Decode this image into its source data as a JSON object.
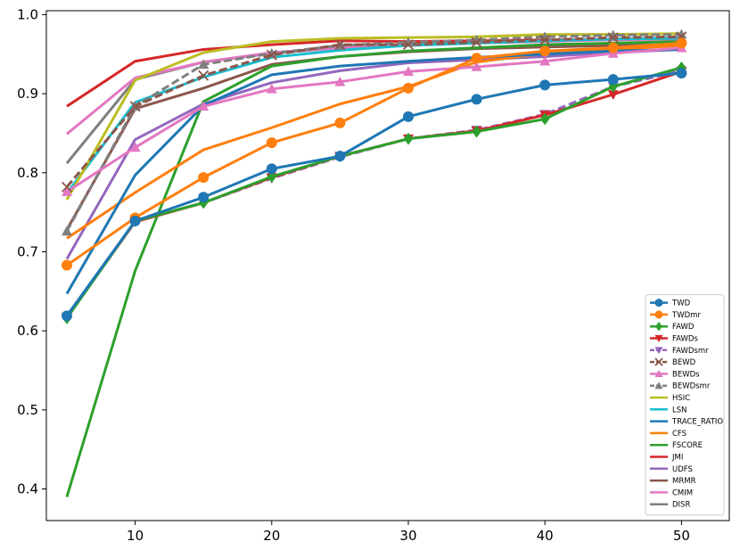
{
  "chart_data": {
    "type": "line",
    "title": "",
    "xlabel": "",
    "ylabel": "",
    "xlim": [
      3.5,
      53.5
    ],
    "ylim": [
      0.36,
      1.005
    ],
    "xticks": [
      10,
      20,
      30,
      40,
      50
    ],
    "yticks": [
      0.4,
      0.5,
      0.6,
      0.7,
      0.8,
      0.9,
      1.0
    ],
    "xtick_labels": [
      "10",
      "20",
      "30",
      "40",
      "50"
    ],
    "ytick_labels": [
      "0.4",
      "0.5",
      "0.6",
      "0.7",
      "0.8",
      "0.9",
      "1.0"
    ],
    "grid": false,
    "legend_position": "lower-right",
    "x": [
      5,
      10,
      15,
      20,
      25,
      30,
      35,
      40,
      45,
      50
    ],
    "series": [
      {
        "name": "TWD",
        "color": "#1f77b4",
        "marker": "circle",
        "dash": "solid",
        "values": [
          0.619,
          0.739,
          0.769,
          0.805,
          0.821,
          0.871,
          0.893,
          0.911,
          0.918,
          0.926
        ]
      },
      {
        "name": "TWDmr",
        "color": "#ff7f0e",
        "marker": "circle",
        "dash": "solid",
        "values": [
          0.683,
          0.743,
          0.794,
          0.838,
          0.863,
          0.907,
          0.945,
          0.954,
          0.958,
          0.964
        ]
      },
      {
        "name": "FAWD",
        "color": "#2ca02c",
        "marker": "diamond",
        "dash": "solid",
        "values": [
          0.616,
          0.739,
          0.762,
          0.795,
          0.821,
          0.843,
          0.852,
          0.868,
          0.909,
          0.933
        ]
      },
      {
        "name": "FAWDs",
        "color": "#d62728",
        "marker": "triangle-down",
        "dash": "solid",
        "values": [
          0.617,
          0.738,
          0.762,
          0.794,
          0.821,
          0.843,
          0.853,
          0.873,
          0.899,
          0.928
        ]
      },
      {
        "name": "FAWDsmr",
        "color": "#9467bd",
        "marker": "triangle-down",
        "dash": "dashed",
        "values": [
          0.617,
          0.738,
          0.762,
          0.793,
          0.82,
          0.843,
          0.854,
          0.874,
          0.909,
          0.929
        ]
      },
      {
        "name": "BEWD",
        "color": "#8c564b",
        "marker": "x",
        "dash": "dashed",
        "values": [
          0.782,
          0.884,
          0.923,
          0.949,
          0.962,
          0.962,
          0.965,
          0.968,
          0.971,
          0.972
        ]
      },
      {
        "name": "BEWDs",
        "color": "#e377c2",
        "marker": "triangle-up",
        "dash": "solid",
        "values": [
          0.776,
          0.832,
          0.884,
          0.906,
          0.915,
          0.928,
          0.934,
          0.941,
          0.951,
          0.958
        ]
      },
      {
        "name": "BEWDsmr",
        "color": "#7f7f7f",
        "marker": "triangle-up",
        "dash": "dashed",
        "values": [
          0.726,
          0.884,
          0.937,
          0.951,
          0.961,
          0.965,
          0.968,
          0.972,
          0.974,
          0.975
        ]
      },
      {
        "name": "HSIC",
        "color": "#bcbd22",
        "marker": "none",
        "dash": "solid",
        "values": [
          0.766,
          0.917,
          0.952,
          0.966,
          0.97,
          0.971,
          0.972,
          0.975,
          0.975,
          0.976
        ]
      },
      {
        "name": "LSN",
        "color": "#17becf",
        "marker": "none",
        "dash": "solid",
        "values": [
          0.774,
          0.889,
          0.921,
          0.946,
          0.955,
          0.961,
          0.964,
          0.967,
          0.969,
          0.97
        ]
      },
      {
        "name": "TRACE_RATIO",
        "color": "#1f77b4",
        "marker": "none",
        "dash": "solid",
        "values": [
          0.647,
          0.797,
          0.885,
          0.924,
          0.935,
          0.941,
          0.946,
          0.95,
          0.954,
          0.956
        ]
      },
      {
        "name": "CFS",
        "color": "#ff7f0e",
        "marker": "none",
        "dash": "solid",
        "values": [
          0.717,
          0.775,
          0.829,
          0.857,
          0.887,
          0.909,
          0.94,
          0.951,
          0.956,
          0.961
        ]
      },
      {
        "name": "FSCORE",
        "color": "#2ca02c",
        "marker": "none",
        "dash": "solid",
        "values": [
          0.39,
          0.676,
          0.89,
          0.935,
          0.947,
          0.954,
          0.958,
          0.962,
          0.964,
          0.966
        ]
      },
      {
        "name": "JMI",
        "color": "#d62728",
        "marker": "none",
        "dash": "solid",
        "values": [
          0.884,
          0.941,
          0.956,
          0.962,
          0.967,
          0.966,
          0.967,
          0.968,
          0.969,
          0.97
        ]
      },
      {
        "name": "UDFS",
        "color": "#9467bd",
        "marker": "none",
        "dash": "solid",
        "values": [
          0.691,
          0.842,
          0.887,
          0.914,
          0.929,
          0.939,
          0.943,
          0.947,
          0.952,
          0.956
        ]
      },
      {
        "name": "MRMR",
        "color": "#8c564b",
        "marker": "none",
        "dash": "solid",
        "values": [
          0.728,
          0.881,
          0.907,
          0.937,
          0.947,
          0.953,
          0.957,
          0.959,
          0.961,
          0.962
        ]
      },
      {
        "name": "CMIM",
        "color": "#e377c2",
        "marker": "none",
        "dash": "solid",
        "values": [
          0.849,
          0.92,
          0.94,
          0.952,
          0.958,
          0.961,
          0.964,
          0.966,
          0.968,
          0.969
        ]
      },
      {
        "name": "DISR",
        "color": "#7f7f7f",
        "marker": "none",
        "dash": "solid",
        "values": [
          0.812,
          0.918,
          0.94,
          0.951,
          0.958,
          0.962,
          0.965,
          0.967,
          0.969,
          0.971
        ]
      }
    ]
  }
}
